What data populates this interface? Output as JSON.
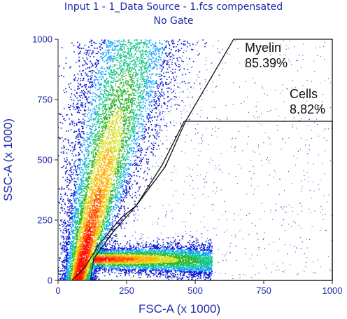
{
  "chart_data": {
    "type": "scatter",
    "title": "Input 1 - 1_Data Source - 1.fcs compensated",
    "subtitle": "No Gate",
    "xlabel": "FSC-A (x 1000)",
    "ylabel": "SSC-A (x 1000)",
    "xlim": [
      0,
      1000
    ],
    "ylim": [
      0,
      1000
    ],
    "xticks": [
      "0",
      "250",
      "500",
      "750",
      "1000"
    ],
    "yticks": [
      "0",
      "250",
      "500",
      "750",
      "1000"
    ],
    "colormap": [
      "#0a17d6",
      "#13a2ff",
      "#14c88a",
      "#2fb52a",
      "#d8e020",
      "#ffb000",
      "#ff5a00",
      "#ff1200"
    ],
    "gates": [
      {
        "name": "Myelin",
        "percent": "85.39%",
        "polygon": [
          [
            50,
            0
          ],
          [
            95,
            50
          ],
          [
            150,
            150
          ],
          [
            230,
            260
          ],
          [
            285,
            310
          ],
          [
            390,
            470
          ],
          [
            465,
            660
          ],
          [
            640,
            1000
          ],
          [
            1000,
            1000
          ],
          [
            1000,
            0
          ]
        ]
      },
      {
        "name": "Cells",
        "percent": "8.82%",
        "polygon": [
          [
            118,
            0
          ],
          [
            130,
            90
          ],
          [
            200,
            200
          ],
          [
            285,
            310
          ],
          [
            380,
            480
          ],
          [
            460,
            660
          ],
          [
            1000,
            660
          ],
          [
            1000,
            0
          ]
        ]
      }
    ],
    "density_clusters": [
      {
        "name": "main diagonal population",
        "x_range": [
          80,
          320
        ],
        "y_range": [
          20,
          1000
        ],
        "peak": [
          110,
          150
        ]
      },
      {
        "name": "low side-scatter population",
        "x_range": [
          130,
          560
        ],
        "y_range": [
          40,
          170
        ],
        "peak": [
          230,
          85
        ]
      }
    ]
  }
}
